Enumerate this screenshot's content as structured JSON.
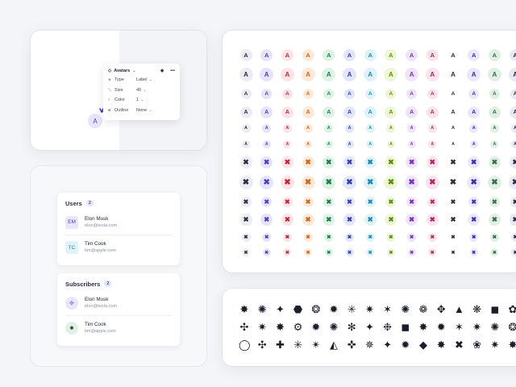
{
  "editor": {
    "avatar_letter": "A",
    "panel_title": "Avatars",
    "properties": [
      {
        "icon": "type-icon",
        "glyph": "◈",
        "label": "Type",
        "value": "Label"
      },
      {
        "icon": "size-icon",
        "glyph": "⤡",
        "label": "Size",
        "value": "40"
      },
      {
        "icon": "color-icon",
        "glyph": "◐",
        "label": "Color",
        "value": "1"
      },
      {
        "icon": "outline-icon",
        "glyph": "■",
        "label": "Outline",
        "value": "None"
      }
    ]
  },
  "users": {
    "title": "Users",
    "count": "2",
    "items": [
      {
        "initials": "EM",
        "name": "Elon Musk",
        "email": "elon@tesla.com",
        "bg": "#e8e6fb",
        "fg": "#4b3fc4"
      },
      {
        "initials": "TC",
        "name": "Tim Cook",
        "email": "tim@apple.com",
        "bg": "#e1f3f8",
        "fg": "#2c8aa8"
      }
    ]
  },
  "subscribers": {
    "title": "Subscribers",
    "count": "2",
    "items": [
      {
        "icon": "dots-icon",
        "glyph": "✣",
        "name": "Elon Musk",
        "email": "elon@tesla.com",
        "bg": "#e8e6fb",
        "fg": "#4b3fc4"
      },
      {
        "icon": "burst-icon",
        "glyph": "✺",
        "name": "Tim Cook",
        "email": "tim@apple.com",
        "bg": "#dff0e4",
        "fg": "#1f2e25"
      }
    ]
  },
  "avatar_grid": {
    "letter": "A",
    "cross": "✖",
    "palette": [
      {
        "bg": "#ececf3",
        "fg": "#2a2f3f"
      },
      {
        "bg": "#e6e4fb",
        "fg": "#4b3fc4"
      },
      {
        "bg": "#fde3e6",
        "fg": "#c4243b"
      },
      {
        "bg": "#fde9d8",
        "fg": "#d0651d"
      },
      {
        "bg": "#dcf3e6",
        "fg": "#237a4a"
      },
      {
        "bg": "#e3e6fb",
        "fg": "#2f3fb0"
      },
      {
        "bg": "#dff2f9",
        "fg": "#1f8ab0"
      },
      {
        "bg": "#eef7d4",
        "fg": "#5e8a17"
      },
      {
        "bg": "#efe5fb",
        "fg": "#7a2fc4"
      },
      {
        "bg": "#fbe3ee",
        "fg": "#b02664"
      },
      {
        "bg": "#ffffff",
        "fg": "#2a2f3f"
      },
      {
        "bg": "#ece8fc",
        "fg": "#3a2fb0"
      },
      {
        "bg": "#e0f0e4",
        "fg": "#3e6b4a"
      },
      {
        "bg": "#e7e9f6",
        "fg": "#2a2f3f"
      }
    ]
  },
  "shape_icons": [
    "✸",
    "✺",
    "✦",
    "⬣",
    "❂",
    "✹",
    "✳",
    "✷",
    "✶",
    "✺",
    "❁",
    "✥",
    "▲",
    "❋",
    "◼",
    "✿",
    "✣",
    "✷",
    "✸",
    "⚙",
    "✹",
    "✺",
    "✻",
    "✦",
    "❉",
    "◼",
    "✸",
    "✹",
    "✶",
    "✷",
    "✺",
    "❂",
    "◯",
    "✣",
    "✚",
    "✳",
    "✴",
    "◭",
    "✜",
    "✵",
    "✦",
    "✹",
    "◆",
    "✸",
    "✖",
    "❀",
    "✷",
    "✸"
  ]
}
